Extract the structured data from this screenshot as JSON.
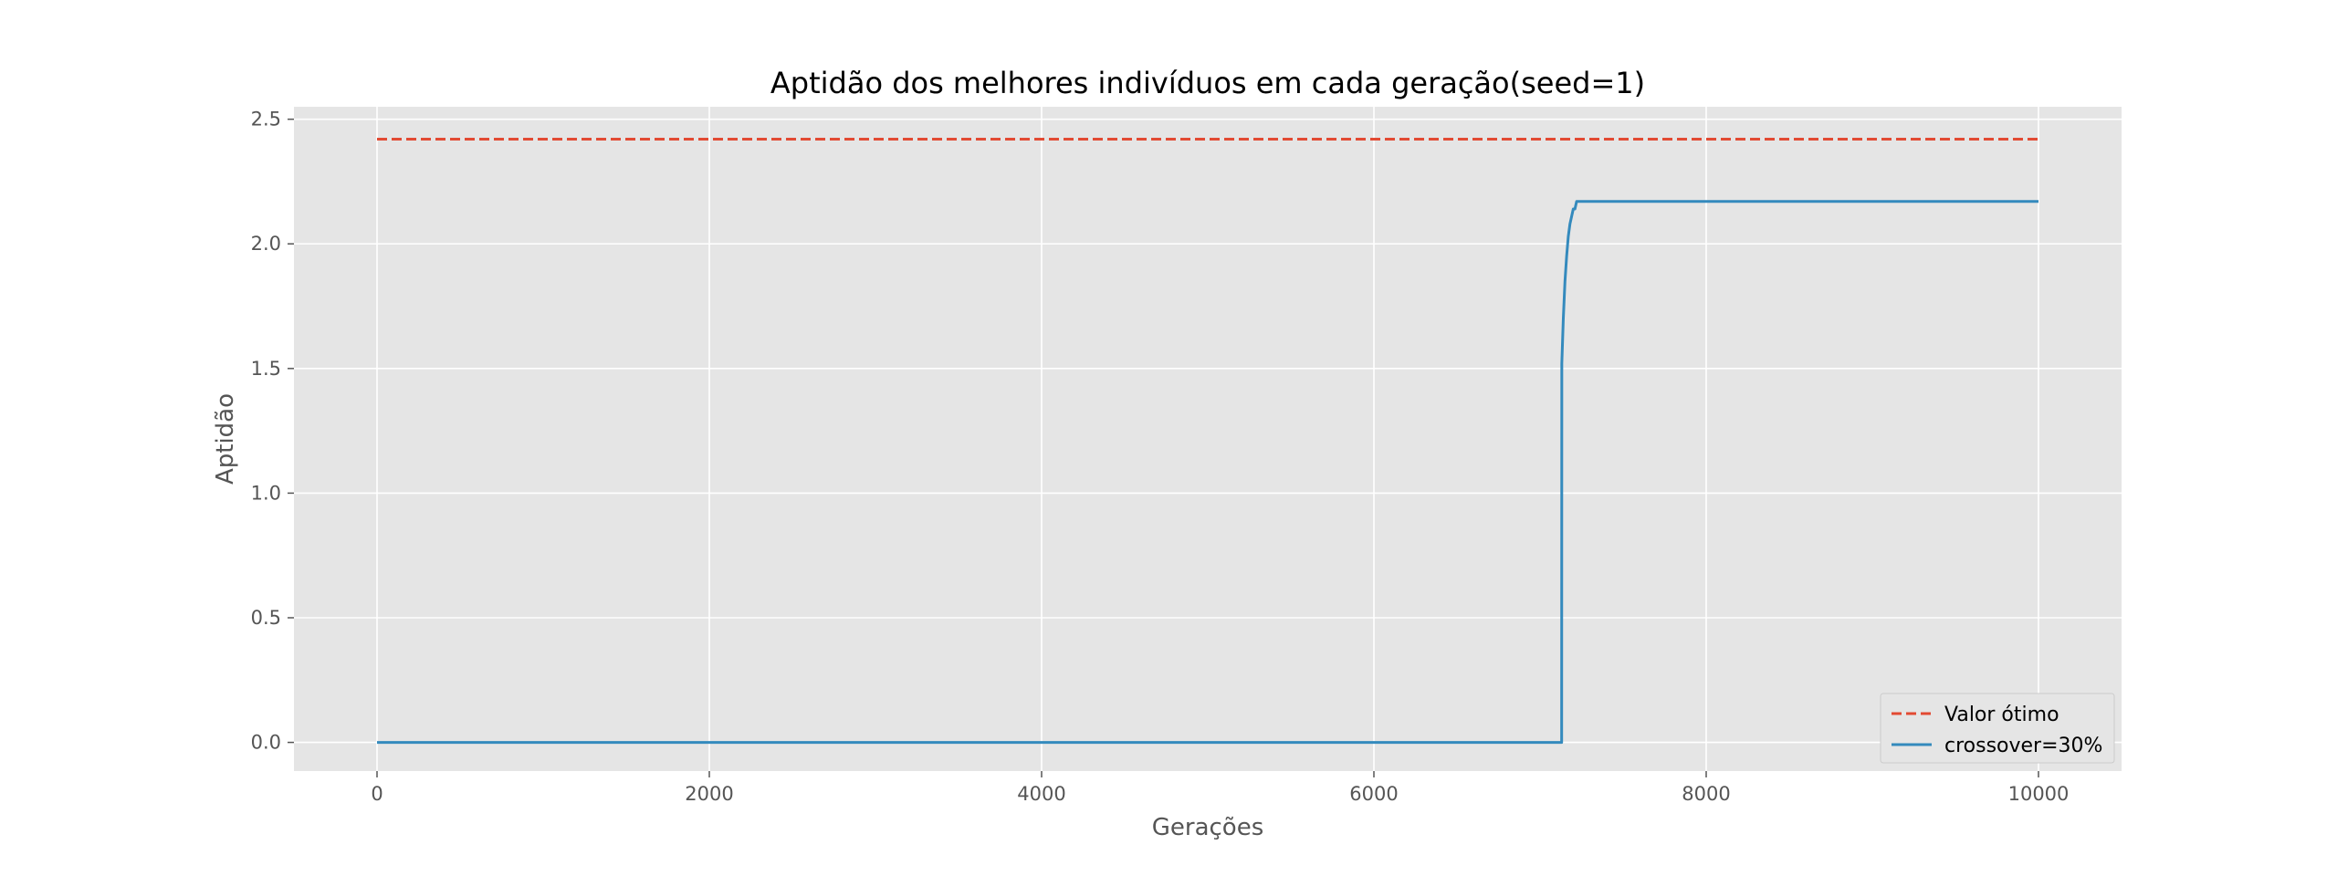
{
  "chart_data": {
    "type": "line",
    "title": "Aptidão dos melhores indivíduos em cada geração(seed=1)",
    "xlabel": "Gerações",
    "ylabel": "Aptidão",
    "xlim": [
      -500,
      10500
    ],
    "ylim": [
      -0.115,
      2.55
    ],
    "xticks": [
      0,
      2000,
      4000,
      6000,
      8000,
      10000
    ],
    "xtick_labels": [
      "0",
      "2000",
      "4000",
      "6000",
      "8000",
      "10000"
    ],
    "yticks": [
      0.0,
      0.5,
      1.0,
      1.5,
      2.0,
      2.5
    ],
    "ytick_labels": [
      "0.0",
      "0.5",
      "1.0",
      "1.5",
      "2.0",
      "2.5"
    ],
    "grid": true,
    "legend_position": "lower-right",
    "series": [
      {
        "name": "Valor ótimo",
        "style": "dashed",
        "color": "#E24A33",
        "x": [
          0,
          10000
        ],
        "y": [
          2.42,
          2.42
        ]
      },
      {
        "name": "crossover=30%",
        "style": "solid",
        "color": "#348ABD",
        "x": [
          0,
          7130,
          7131,
          7140,
          7150,
          7160,
          7170,
          7180,
          7190,
          7200,
          7210,
          7220,
          10000
        ],
        "y": [
          0.0,
          0.0,
          1.52,
          1.7,
          1.85,
          1.95,
          2.03,
          2.08,
          2.11,
          2.14,
          2.14,
          2.17,
          2.17
        ]
      }
    ]
  }
}
